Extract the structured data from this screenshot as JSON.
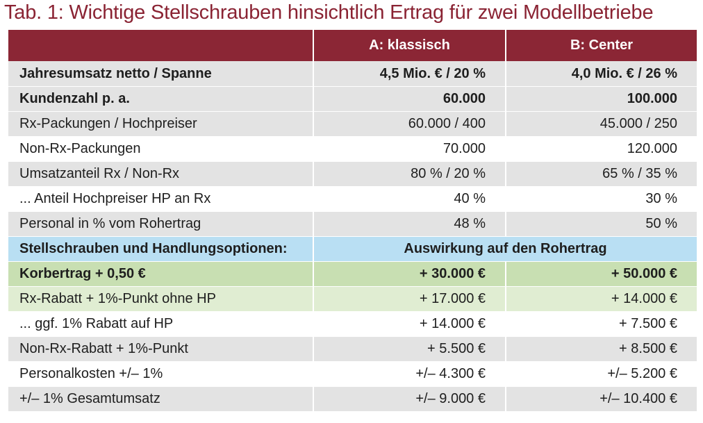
{
  "title": "Tab. 1: Wichtige Stellschrauben hinsichtlich Ertrag für zwei Modellbetriebe",
  "header": {
    "col_a": "A: klassisch",
    "col_b": "B: Center"
  },
  "rows_top": [
    {
      "label": "Jahresumsatz netto / Spanne",
      "a": "4,5 Mio. € / 20 %",
      "b": "4,0 Mio. € / 26 %"
    },
    {
      "label": "Kundenzahl p. a.",
      "a": "60.000",
      "b": "100.000"
    },
    {
      "label": "Rx-Packungen / Hochpreiser",
      "a": "60.000 / 400",
      "b": "45.000 / 250"
    },
    {
      "label": "Non-Rx-Packungen",
      "a": "70.000",
      "b": "120.000"
    },
    {
      "label": "Umsatzanteil Rx / Non-Rx",
      "a": "80 % / 20 %",
      "b": "65 % / 35 %"
    },
    {
      "label": "... Anteil Hochpreiser HP an Rx",
      "a": "40 %",
      "b": "30 %"
    },
    {
      "label": "Personal in % vom Rohertrag",
      "a": "48 %",
      "b": "50 %"
    }
  ],
  "section": {
    "label": "Stellschrauben und Handlungsoptionen:",
    "impact": "Auswirkung auf den Rohertrag"
  },
  "rows_bottom": [
    {
      "label": "Korbertrag + 0,50 €",
      "a": "+ 30.000 €",
      "b": "+ 50.000 €"
    },
    {
      "label": "Rx-Rabatt + 1%-Punkt ohne HP",
      "a": "+ 17.000 €",
      "b": "+ 14.000 €"
    },
    {
      "label": "... ggf. 1% Rabatt auf HP",
      "a": "+ 14.000 €",
      "b": "+ 7.500 €"
    },
    {
      "label": "Non-Rx-Rabatt + 1%-Punkt",
      "a": "+ 5.500 €",
      "b": "+ 8.500 €"
    },
    {
      "label": "Personalkosten +/– 1%",
      "a": "+/– 4.300 €",
      "b": "+/– 5.200 €"
    },
    {
      "label": "+/– 1% Gesamtumsatz",
      "a": "+/– 9.000 €",
      "b": "+/– 10.400 €"
    }
  ]
}
